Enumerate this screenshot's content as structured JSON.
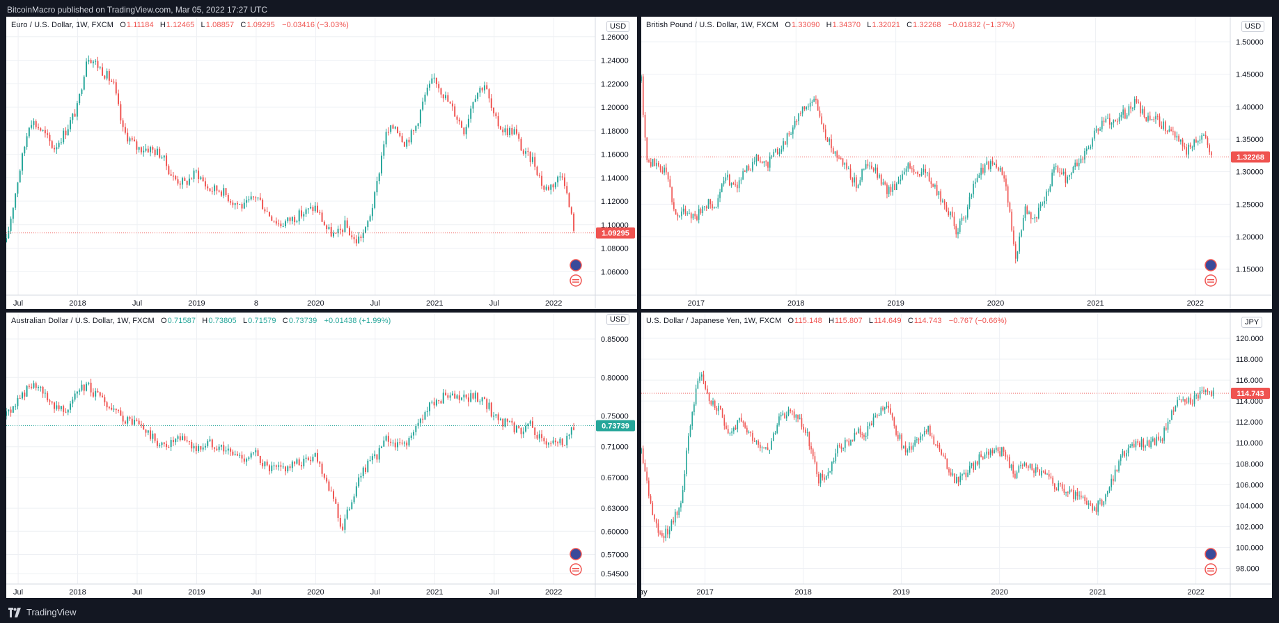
{
  "header": {
    "published_text": "BitcoinMacro published on TradingView.com, Mar 05, 2022 17:27 UTC"
  },
  "footer": {
    "brand": "TradingView"
  },
  "colors": {
    "up": "#26a69a",
    "down": "#ef5350",
    "grid": "#eef0f4",
    "axis_text": "#131722"
  },
  "chart_data": [
    {
      "type": "candlestick",
      "title": "Euro / U.S. Dollar, 1W, FXCM",
      "ohlc": {
        "O": "1.11184",
        "H": "1.12465",
        "L": "1.08857",
        "C": "1.09295",
        "change": "−0.03416 (−3.03%)"
      },
      "currency": "USD",
      "direction": "down",
      "last_price": "1.09295",
      "last_value": 1.09295,
      "ylim": [
        1.04,
        1.264
      ],
      "y_ticks": [
        "1.26000",
        "1.24000",
        "1.22000",
        "1.20000",
        "1.18000",
        "1.16000",
        "1.14000",
        "1.12000",
        "1.10000",
        "1.08000",
        "1.06000"
      ],
      "y_tick_values": [
        1.26,
        1.24,
        1.22,
        1.2,
        1.18,
        1.16,
        1.14,
        1.12,
        1.1,
        1.08,
        1.06
      ],
      "xlim": [
        2017.4,
        2022.35
      ],
      "x_ticks": [
        "Jul",
        "2018",
        "Jul",
        "2019",
        "8",
        "2020",
        "Jul",
        "2021",
        "Jul",
        "2022"
      ],
      "x_tick_values": [
        2017.5,
        2018.0,
        2018.5,
        2019.0,
        2019.5,
        2020.0,
        2020.5,
        2021.0,
        2021.5,
        2022.0
      ],
      "series": [
        [
          2017.4,
          1.085
        ],
        [
          2017.5,
          1.14
        ],
        [
          2017.6,
          1.19
        ],
        [
          2017.7,
          1.18
        ],
        [
          2017.8,
          1.165
        ],
        [
          2017.9,
          1.18
        ],
        [
          2018.0,
          1.2
        ],
        [
          2018.08,
          1.245
        ],
        [
          2018.2,
          1.232
        ],
        [
          2018.3,
          1.22
        ],
        [
          2018.38,
          1.18
        ],
        [
          2018.5,
          1.165
        ],
        [
          2018.6,
          1.165
        ],
        [
          2018.7,
          1.16
        ],
        [
          2018.8,
          1.14
        ],
        [
          2018.9,
          1.135
        ],
        [
          2019.0,
          1.145
        ],
        [
          2019.1,
          1.13
        ],
        [
          2019.2,
          1.13
        ],
        [
          2019.3,
          1.12
        ],
        [
          2019.4,
          1.115
        ],
        [
          2019.5,
          1.125
        ],
        [
          2019.6,
          1.11
        ],
        [
          2019.7,
          1.1
        ],
        [
          2019.8,
          1.105
        ],
        [
          2019.9,
          1.11
        ],
        [
          2020.0,
          1.115
        ],
        [
          2020.1,
          1.095
        ],
        [
          2020.17,
          1.09
        ],
        [
          2020.25,
          1.1
        ],
        [
          2020.33,
          1.085
        ],
        [
          2020.42,
          1.095
        ],
        [
          2020.5,
          1.125
        ],
        [
          2020.58,
          1.175
        ],
        [
          2020.67,
          1.185
        ],
        [
          2020.75,
          1.17
        ],
        [
          2020.83,
          1.18
        ],
        [
          2020.92,
          1.21
        ],
        [
          2021.0,
          1.225
        ],
        [
          2021.08,
          1.21
        ],
        [
          2021.17,
          1.195
        ],
        [
          2021.25,
          1.18
        ],
        [
          2021.33,
          1.21
        ],
        [
          2021.42,
          1.22
        ],
        [
          2021.5,
          1.19
        ],
        [
          2021.58,
          1.18
        ],
        [
          2021.67,
          1.18
        ],
        [
          2021.75,
          1.16
        ],
        [
          2021.83,
          1.155
        ],
        [
          2021.92,
          1.13
        ],
        [
          2022.0,
          1.135
        ],
        [
          2022.08,
          1.145
        ],
        [
          2022.12,
          1.12
        ],
        [
          2022.18,
          1.093
        ]
      ]
    },
    {
      "type": "candlestick",
      "title": "British Pound / U.S. Dollar, 1W, FXCM",
      "ohlc": {
        "O": "1.33090",
        "H": "1.34370",
        "L": "1.32021",
        "C": "1.32268",
        "change": "−0.01832 (−1.37%)"
      },
      "currency": "USD",
      "direction": "down",
      "last_price": "1.32268",
      "last_value": 1.32268,
      "ylim": [
        1.11,
        1.515
      ],
      "y_ticks": [
        "1.50000",
        "1.45000",
        "1.40000",
        "1.35000",
        "1.30000",
        "1.25000",
        "1.20000",
        "1.15000"
      ],
      "y_tick_values": [
        1.5,
        1.45,
        1.4,
        1.35,
        1.3,
        1.25,
        1.2,
        1.15
      ],
      "xlim": [
        2016.45,
        2022.35
      ],
      "x_ticks": [
        "2017",
        "2018",
        "2019",
        "2020",
        "2021",
        "2022"
      ],
      "x_tick_values": [
        2017.0,
        2018.0,
        2019.0,
        2020.0,
        2021.0,
        2022.0
      ],
      "series": [
        [
          2016.45,
          1.44
        ],
        [
          2016.5,
          1.32
        ],
        [
          2016.6,
          1.31
        ],
        [
          2016.7,
          1.3
        ],
        [
          2016.8,
          1.23
        ],
        [
          2016.9,
          1.24
        ],
        [
          2017.0,
          1.23
        ],
        [
          2017.1,
          1.25
        ],
        [
          2017.2,
          1.25
        ],
        [
          2017.3,
          1.29
        ],
        [
          2017.4,
          1.28
        ],
        [
          2017.5,
          1.3
        ],
        [
          2017.6,
          1.32
        ],
        [
          2017.7,
          1.31
        ],
        [
          2017.8,
          1.33
        ],
        [
          2017.9,
          1.35
        ],
        [
          2018.0,
          1.38
        ],
        [
          2018.1,
          1.4
        ],
        [
          2018.2,
          1.41
        ],
        [
          2018.3,
          1.35
        ],
        [
          2018.4,
          1.33
        ],
        [
          2018.5,
          1.31
        ],
        [
          2018.6,
          1.28
        ],
        [
          2018.7,
          1.31
        ],
        [
          2018.8,
          1.3
        ],
        [
          2018.9,
          1.27
        ],
        [
          2019.0,
          1.28
        ],
        [
          2019.1,
          1.31
        ],
        [
          2019.2,
          1.3
        ],
        [
          2019.3,
          1.3
        ],
        [
          2019.4,
          1.27
        ],
        [
          2019.5,
          1.25
        ],
        [
          2019.6,
          1.21
        ],
        [
          2019.7,
          1.23
        ],
        [
          2019.8,
          1.29
        ],
        [
          2019.9,
          1.31
        ],
        [
          2020.0,
          1.31
        ],
        [
          2020.1,
          1.29
        ],
        [
          2020.2,
          1.16
        ],
        [
          2020.28,
          1.24
        ],
        [
          2020.4,
          1.23
        ],
        [
          2020.5,
          1.26
        ],
        [
          2020.6,
          1.31
        ],
        [
          2020.7,
          1.29
        ],
        [
          2020.8,
          1.31
        ],
        [
          2020.9,
          1.33
        ],
        [
          2021.0,
          1.36
        ],
        [
          2021.1,
          1.38
        ],
        [
          2021.2,
          1.38
        ],
        [
          2021.3,
          1.39
        ],
        [
          2021.4,
          1.41
        ],
        [
          2021.5,
          1.38
        ],
        [
          2021.6,
          1.38
        ],
        [
          2021.7,
          1.37
        ],
        [
          2021.8,
          1.36
        ],
        [
          2021.9,
          1.33
        ],
        [
          2022.0,
          1.35
        ],
        [
          2022.08,
          1.36
        ],
        [
          2022.18,
          1.322
        ]
      ]
    },
    {
      "type": "candlestick",
      "title": "Australian Dollar / U.S. Dollar, 1W, FXCM",
      "ohlc": {
        "O": "0.71587",
        "H": "0.73805",
        "L": "0.71579",
        "C": "0.73739",
        "change": "+0.01438 (+1.99%)"
      },
      "currency": "USD",
      "direction": "up",
      "last_price": "0.73739",
      "last_value": 0.73739,
      "ylim": [
        0.5315,
        0.8645
      ],
      "y_ticks": [
        "0.85000",
        "0.80000",
        "0.75000",
        "0.71000",
        "0.67000",
        "0.63000",
        "0.60000",
        "0.57000",
        "0.54500"
      ],
      "y_tick_values": [
        0.85,
        0.8,
        0.75,
        0.71,
        0.67,
        0.63,
        0.6,
        0.57,
        0.545
      ],
      "xlim": [
        2017.4,
        2022.35
      ],
      "x_ticks": [
        "Jul",
        "2018",
        "Jul",
        "2019",
        "Jul",
        "2020",
        "Jul",
        "2021",
        "Jul",
        "2022"
      ],
      "x_tick_values": [
        2017.5,
        2018.0,
        2018.5,
        2019.0,
        2019.5,
        2020.0,
        2020.5,
        2021.0,
        2021.5,
        2022.0
      ],
      "series": [
        [
          2017.4,
          0.75
        ],
        [
          2017.5,
          0.77
        ],
        [
          2017.6,
          0.79
        ],
        [
          2017.7,
          0.78
        ],
        [
          2017.8,
          0.765
        ],
        [
          2017.9,
          0.76
        ],
        [
          2018.0,
          0.78
        ],
        [
          2018.08,
          0.79
        ],
        [
          2018.2,
          0.77
        ],
        [
          2018.3,
          0.755
        ],
        [
          2018.4,
          0.745
        ],
        [
          2018.5,
          0.74
        ],
        [
          2018.6,
          0.725
        ],
        [
          2018.7,
          0.71
        ],
        [
          2018.8,
          0.715
        ],
        [
          2018.9,
          0.72
        ],
        [
          2019.0,
          0.705
        ],
        [
          2019.1,
          0.715
        ],
        [
          2019.2,
          0.71
        ],
        [
          2019.3,
          0.7
        ],
        [
          2019.4,
          0.695
        ],
        [
          2019.5,
          0.7
        ],
        [
          2019.6,
          0.68
        ],
        [
          2019.7,
          0.68
        ],
        [
          2019.8,
          0.685
        ],
        [
          2019.9,
          0.69
        ],
        [
          2020.0,
          0.7
        ],
        [
          2020.08,
          0.67
        ],
        [
          2020.15,
          0.645
        ],
        [
          2020.22,
          0.6
        ],
        [
          2020.3,
          0.64
        ],
        [
          2020.4,
          0.68
        ],
        [
          2020.5,
          0.695
        ],
        [
          2020.6,
          0.72
        ],
        [
          2020.7,
          0.71
        ],
        [
          2020.8,
          0.72
        ],
        [
          2020.9,
          0.75
        ],
        [
          2021.0,
          0.77
        ],
        [
          2021.1,
          0.775
        ],
        [
          2021.2,
          0.77
        ],
        [
          2021.3,
          0.775
        ],
        [
          2021.4,
          0.775
        ],
        [
          2021.5,
          0.75
        ],
        [
          2021.6,
          0.74
        ],
        [
          2021.7,
          0.73
        ],
        [
          2021.8,
          0.74
        ],
        [
          2021.9,
          0.715
        ],
        [
          2022.0,
          0.72
        ],
        [
          2022.08,
          0.715
        ],
        [
          2022.18,
          0.737
        ]
      ]
    },
    {
      "type": "candlestick",
      "title": "U.S. Dollar / Japanese Yen, 1W, FXCM",
      "ohlc": {
        "O": "115.148",
        "H": "115.807",
        "L": "114.649",
        "C": "114.743",
        "change": "−0.767 (−0.66%)"
      },
      "currency": "JPY",
      "direction": "down",
      "last_price": "114.743",
      "last_value": 114.743,
      "ylim": [
        96.5,
        121.0
      ],
      "y_ticks": [
        "120.000",
        "118.000",
        "116.000",
        "114.000",
        "112.000",
        "110.000",
        "108.000",
        "106.000",
        "104.000",
        "102.000",
        "100.000",
        "98.000"
      ],
      "y_tick_values": [
        120,
        118,
        116,
        114,
        112,
        110,
        108,
        106,
        104,
        102,
        100,
        98
      ],
      "xlim": [
        2016.35,
        2022.35
      ],
      "x_ticks": [
        "ay",
        "2017",
        "2018",
        "2019",
        "2020",
        "2021",
        "2022"
      ],
      "x_tick_values": [
        2016.37,
        2017.0,
        2018.0,
        2019.0,
        2020.0,
        2021.0,
        2022.0
      ],
      "series": [
        [
          2016.35,
          109.0
        ],
        [
          2016.45,
          104.0
        ],
        [
          2016.55,
          101.0
        ],
        [
          2016.65,
          102.0
        ],
        [
          2016.75,
          104.0
        ],
        [
          2016.85,
          112.0
        ],
        [
          2016.95,
          117.0
        ],
        [
          2017.05,
          114.0
        ],
        [
          2017.15,
          113.0
        ],
        [
          2017.25,
          111.0
        ],
        [
          2017.35,
          112.0
        ],
        [
          2017.45,
          111.0
        ],
        [
          2017.55,
          110.0
        ],
        [
          2017.65,
          109.5
        ],
        [
          2017.75,
          112.0
        ],
        [
          2017.85,
          113.0
        ],
        [
          2017.95,
          112.5
        ],
        [
          2018.05,
          110.5
        ],
        [
          2018.15,
          106.5
        ],
        [
          2018.25,
          107.0
        ],
        [
          2018.35,
          109.5
        ],
        [
          2018.45,
          110.0
        ],
        [
          2018.55,
          111.0
        ],
        [
          2018.65,
          111.0
        ],
        [
          2018.75,
          112.5
        ],
        [
          2018.85,
          113.5
        ],
        [
          2018.95,
          111.0
        ],
        [
          2019.05,
          109.0
        ],
        [
          2019.15,
          110.5
        ],
        [
          2019.25,
          111.5
        ],
        [
          2019.35,
          110.0
        ],
        [
          2019.45,
          108.0
        ],
        [
          2019.55,
          106.5
        ],
        [
          2019.65,
          107.0
        ],
        [
          2019.75,
          108.0
        ],
        [
          2019.85,
          109.0
        ],
        [
          2019.95,
          109.5
        ],
        [
          2020.05,
          109.0
        ],
        [
          2020.15,
          107.0
        ],
        [
          2020.25,
          108.0
        ],
        [
          2020.35,
          107.5
        ],
        [
          2020.45,
          107.0
        ],
        [
          2020.55,
          106.0
        ],
        [
          2020.65,
          105.5
        ],
        [
          2020.75,
          105.0
        ],
        [
          2020.85,
          104.5
        ],
        [
          2020.95,
          103.5
        ],
        [
          2021.05,
          104.5
        ],
        [
          2021.15,
          106.5
        ],
        [
          2021.25,
          109.0
        ],
        [
          2021.35,
          109.5
        ],
        [
          2021.45,
          110.0
        ],
        [
          2021.55,
          110.0
        ],
        [
          2021.65,
          110.5
        ],
        [
          2021.75,
          113.0
        ],
        [
          2021.85,
          114.0
        ],
        [
          2021.95,
          114.0
        ],
        [
          2022.05,
          115.0
        ],
        [
          2022.18,
          114.74
        ]
      ]
    }
  ]
}
